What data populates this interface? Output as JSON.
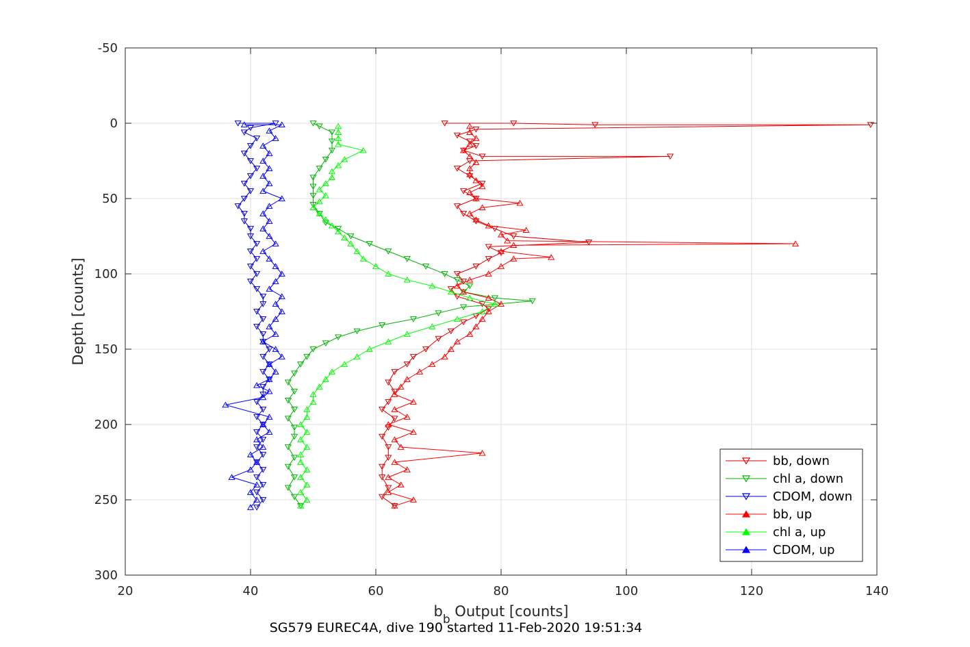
{
  "chart_data": {
    "type": "line",
    "title": "",
    "xlabel": "b",
    "xlabel_sub": "b",
    "xlabel_rest": " Output [counts]",
    "ylabel": "Depth [counts]",
    "caption": "SG579 EUREC4A, dive 190 started 11-Feb-2020 19:51:34",
    "xlim": [
      20,
      140
    ],
    "ylim": [
      -50,
      300
    ],
    "y_reversed": true,
    "grid": true,
    "xticks": [
      "20",
      "40",
      "60",
      "80",
      "100",
      "120",
      "140"
    ],
    "yticks": [
      "-50",
      "0",
      "50",
      "100",
      "150",
      "200",
      "250",
      "300"
    ],
    "legend_position": "bottom-right",
    "series": [
      {
        "name": "bb, down",
        "color": "#e00000",
        "marker": "down",
        "points": [
          [
            71,
            0
          ],
          [
            82,
            0
          ],
          [
            95,
            1
          ],
          [
            139,
            1
          ],
          [
            76,
            4
          ],
          [
            73,
            8
          ],
          [
            75,
            12
          ],
          [
            76,
            15
          ],
          [
            74,
            18
          ],
          [
            77,
            22
          ],
          [
            107,
            22
          ],
          [
            75,
            25
          ],
          [
            73,
            30
          ],
          [
            75,
            35
          ],
          [
            77,
            40
          ],
          [
            74,
            45
          ],
          [
            76,
            50
          ],
          [
            73,
            55
          ],
          [
            74,
            60
          ],
          [
            76,
            65
          ],
          [
            79,
            70
          ],
          [
            82,
            75
          ],
          [
            94,
            79
          ],
          [
            78,
            82
          ],
          [
            80,
            86
          ],
          [
            78,
            90
          ],
          [
            76,
            95
          ],
          [
            73,
            100
          ],
          [
            74,
            105
          ],
          [
            72,
            110
          ],
          [
            73,
            115
          ],
          [
            77,
            120
          ],
          [
            78,
            123
          ],
          [
            76,
            128
          ],
          [
            74,
            132
          ],
          [
            72,
            138
          ],
          [
            70,
            143
          ],
          [
            68,
            150
          ],
          [
            66,
            155
          ],
          [
            65,
            160
          ],
          [
            63,
            165
          ],
          [
            62,
            172
          ],
          [
            63,
            178
          ],
          [
            62,
            185
          ],
          [
            61,
            190
          ],
          [
            63,
            196
          ],
          [
            62,
            202
          ],
          [
            61,
            208
          ],
          [
            62,
            215
          ],
          [
            62,
            222
          ],
          [
            61,
            228
          ],
          [
            61,
            235
          ],
          [
            62,
            242
          ],
          [
            61,
            248
          ],
          [
            63,
            254
          ]
        ]
      },
      {
        "name": "chl a, down",
        "color": "#00b400",
        "marker": "down",
        "points": [
          [
            50,
            0
          ],
          [
            51,
            2
          ],
          [
            53,
            6
          ],
          [
            53,
            12
          ],
          [
            53,
            18
          ],
          [
            52,
            24
          ],
          [
            51,
            30
          ],
          [
            50,
            36
          ],
          [
            50,
            42
          ],
          [
            50,
            48
          ],
          [
            50,
            54
          ],
          [
            51,
            60
          ],
          [
            52,
            66
          ],
          [
            54,
            70
          ],
          [
            56,
            75
          ],
          [
            59,
            80
          ],
          [
            62,
            85
          ],
          [
            65,
            90
          ],
          [
            68,
            95
          ],
          [
            71,
            100
          ],
          [
            73,
            104
          ],
          [
            75,
            108
          ],
          [
            74,
            112
          ],
          [
            79,
            116
          ],
          [
            85,
            118
          ],
          [
            74,
            122
          ],
          [
            70,
            126
          ],
          [
            66,
            130
          ],
          [
            61,
            134
          ],
          [
            57,
            138
          ],
          [
            54,
            142
          ],
          [
            52,
            146
          ],
          [
            50,
            150
          ],
          [
            49,
            155
          ],
          [
            48,
            160
          ],
          [
            47,
            166
          ],
          [
            46,
            172
          ],
          [
            47,
            178
          ],
          [
            46,
            184
          ],
          [
            47,
            190
          ],
          [
            46,
            196
          ],
          [
            47,
            202
          ],
          [
            47,
            208
          ],
          [
            46,
            215
          ],
          [
            47,
            222
          ],
          [
            46,
            228
          ],
          [
            47,
            235
          ],
          [
            46,
            242
          ],
          [
            47,
            248
          ],
          [
            48,
            254
          ]
        ]
      },
      {
        "name": "CDOM, down",
        "color": "#0000d8",
        "marker": "down",
        "points": [
          [
            38,
            0
          ],
          [
            44,
            0
          ],
          [
            40,
            3
          ],
          [
            39,
            6
          ],
          [
            41,
            10
          ],
          [
            40,
            15
          ],
          [
            39,
            20
          ],
          [
            40,
            25
          ],
          [
            41,
            30
          ],
          [
            40,
            35
          ],
          [
            39,
            40
          ],
          [
            40,
            45
          ],
          [
            39,
            50
          ],
          [
            38,
            55
          ],
          [
            39,
            60
          ],
          [
            39,
            65
          ],
          [
            40,
            70
          ],
          [
            40,
            75
          ],
          [
            41,
            80
          ],
          [
            40,
            85
          ],
          [
            41,
            90
          ],
          [
            40,
            95
          ],
          [
            41,
            100
          ],
          [
            40,
            105
          ],
          [
            41,
            110
          ],
          [
            42,
            115
          ],
          [
            42,
            120
          ],
          [
            41,
            125
          ],
          [
            42,
            130
          ],
          [
            41,
            135
          ],
          [
            42,
            140
          ],
          [
            42,
            145
          ],
          [
            43,
            150
          ],
          [
            42,
            155
          ],
          [
            43,
            160
          ],
          [
            42,
            165
          ],
          [
            43,
            170
          ],
          [
            42,
            175
          ],
          [
            42,
            180
          ],
          [
            41,
            185
          ],
          [
            42,
            190
          ],
          [
            41,
            195
          ],
          [
            42,
            200
          ],
          [
            41,
            205
          ],
          [
            42,
            210
          ],
          [
            41,
            215
          ],
          [
            42,
            220
          ],
          [
            41,
            225
          ],
          [
            42,
            230
          ],
          [
            41,
            235
          ],
          [
            42,
            240
          ],
          [
            41,
            245
          ],
          [
            42,
            250
          ],
          [
            41,
            255
          ]
        ]
      },
      {
        "name": "bb, up",
        "color": "#ff0000",
        "marker": "up",
        "points": [
          [
            63,
            254
          ],
          [
            66,
            250
          ],
          [
            62,
            245
          ],
          [
            64,
            240
          ],
          [
            62,
            235
          ],
          [
            65,
            230
          ],
          [
            63,
            225
          ],
          [
            77,
            219
          ],
          [
            64,
            215
          ],
          [
            63,
            210
          ],
          [
            66,
            205
          ],
          [
            62,
            200
          ],
          [
            65,
            195
          ],
          [
            63,
            190
          ],
          [
            66,
            185
          ],
          [
            63,
            180
          ],
          [
            64,
            175
          ],
          [
            65,
            170
          ],
          [
            67,
            165
          ],
          [
            69,
            160
          ],
          [
            71,
            155
          ],
          [
            72,
            150
          ],
          [
            73,
            145
          ],
          [
            75,
            140
          ],
          [
            76,
            135
          ],
          [
            77,
            130
          ],
          [
            78,
            125
          ],
          [
            80,
            120
          ],
          [
            78,
            116
          ],
          [
            74,
            112
          ],
          [
            73,
            108
          ],
          [
            75,
            104
          ],
          [
            78,
            100
          ],
          [
            80,
            95
          ],
          [
            82,
            90
          ],
          [
            88,
            89
          ],
          [
            80,
            85
          ],
          [
            82,
            81
          ],
          [
            127,
            80
          ],
          [
            81,
            78
          ],
          [
            80,
            74
          ],
          [
            84,
            71
          ],
          [
            78,
            68
          ],
          [
            76,
            64
          ],
          [
            75,
            60
          ],
          [
            77,
            56
          ],
          [
            83,
            53
          ],
          [
            76,
            50
          ],
          [
            75,
            46
          ],
          [
            77,
            42
          ],
          [
            76,
            38
          ],
          [
            75,
            34
          ],
          [
            75,
            30
          ],
          [
            76,
            26
          ],
          [
            75,
            22
          ],
          [
            74,
            18
          ],
          [
            75,
            14
          ],
          [
            76,
            10
          ],
          [
            75,
            6
          ],
          [
            75,
            2
          ]
        ]
      },
      {
        "name": "chl a, up",
        "color": "#00ff00",
        "marker": "up",
        "points": [
          [
            48,
            254
          ],
          [
            49,
            250
          ],
          [
            48,
            245
          ],
          [
            49,
            240
          ],
          [
            48,
            235
          ],
          [
            49,
            230
          ],
          [
            48,
            225
          ],
          [
            48,
            220
          ],
          [
            49,
            215
          ],
          [
            48,
            210
          ],
          [
            49,
            205
          ],
          [
            48,
            200
          ],
          [
            49,
            195
          ],
          [
            49,
            190
          ],
          [
            50,
            185
          ],
          [
            50,
            180
          ],
          [
            51,
            175
          ],
          [
            52,
            170
          ],
          [
            53,
            165
          ],
          [
            55,
            160
          ],
          [
            57,
            155
          ],
          [
            59,
            150
          ],
          [
            62,
            145
          ],
          [
            65,
            140
          ],
          [
            69,
            135
          ],
          [
            73,
            130
          ],
          [
            77,
            125
          ],
          [
            79,
            120
          ],
          [
            75,
            116
          ],
          [
            72,
            112
          ],
          [
            69,
            108
          ],
          [
            65,
            104
          ],
          [
            62,
            100
          ],
          [
            60,
            95
          ],
          [
            58,
            90
          ],
          [
            57,
            85
          ],
          [
            56,
            80
          ],
          [
            55,
            76
          ],
          [
            54,
            72
          ],
          [
            53,
            68
          ],
          [
            52,
            64
          ],
          [
            51,
            60
          ],
          [
            50,
            56
          ],
          [
            51,
            52
          ],
          [
            52,
            48
          ],
          [
            51,
            44
          ],
          [
            52,
            40
          ],
          [
            53,
            36
          ],
          [
            53,
            32
          ],
          [
            54,
            28
          ],
          [
            55,
            24
          ],
          [
            58,
            18
          ],
          [
            54,
            14
          ],
          [
            54,
            10
          ],
          [
            54,
            6
          ],
          [
            54,
            2
          ]
        ]
      },
      {
        "name": "CDOM, up",
        "color": "#0000ff",
        "marker": "up",
        "points": [
          [
            40,
            255
          ],
          [
            41,
            250
          ],
          [
            40,
            245
          ],
          [
            41,
            240
          ],
          [
            37,
            235
          ],
          [
            40,
            230
          ],
          [
            41,
            225
          ],
          [
            40,
            220
          ],
          [
            42,
            215
          ],
          [
            41,
            210
          ],
          [
            43,
            205
          ],
          [
            42,
            200
          ],
          [
            43,
            195
          ],
          [
            36,
            187
          ],
          [
            42,
            182
          ],
          [
            43,
            178
          ],
          [
            41,
            174
          ],
          [
            43,
            170
          ],
          [
            44,
            165
          ],
          [
            43,
            160
          ],
          [
            45,
            155
          ],
          [
            44,
            150
          ],
          [
            42,
            145
          ],
          [
            44,
            140
          ],
          [
            43,
            135
          ],
          [
            44,
            130
          ],
          [
            45,
            125
          ],
          [
            44,
            120
          ],
          [
            45,
            115
          ],
          [
            43,
            110
          ],
          [
            44,
            105
          ],
          [
            45,
            100
          ],
          [
            44,
            95
          ],
          [
            43,
            90
          ],
          [
            42,
            85
          ],
          [
            44,
            80
          ],
          [
            43,
            75
          ],
          [
            42,
            70
          ],
          [
            43,
            65
          ],
          [
            42,
            60
          ],
          [
            43,
            55
          ],
          [
            45,
            50
          ],
          [
            42,
            45
          ],
          [
            43,
            40
          ],
          [
            42,
            35
          ],
          [
            43,
            30
          ],
          [
            42,
            25
          ],
          [
            43,
            20
          ],
          [
            42,
            15
          ],
          [
            44,
            10
          ],
          [
            43,
            5
          ],
          [
            45,
            1
          ],
          [
            39,
            1
          ]
        ]
      }
    ]
  }
}
